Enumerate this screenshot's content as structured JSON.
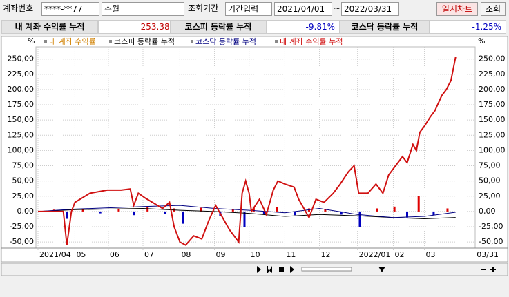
{
  "toolbar": {
    "account_label": "계좌번호",
    "account": "****-**77",
    "name": "추월",
    "period_label": "조회기간",
    "period_mode": "기간입력",
    "start": "2021/04/01",
    "tilde": "~",
    "end": "2022/03/31",
    "chart_button": "일지차트",
    "query_button": "조회"
  },
  "summary": [
    {
      "label": "내 계좌 수익률 누적",
      "value": "253.38%"
    },
    {
      "label": "코스피 등락률 누적",
      "value": "-9.81%"
    },
    {
      "label": "코스닥 등락률 누적",
      "value": "-1.25%"
    }
  ],
  "chart_data": {
    "type": "line",
    "unit": "%",
    "xlim": [
      "2021/04/01",
      "2022/03/31"
    ],
    "xticks": [
      {
        "value": "2021/04/01",
        "label": "2021/04"
      },
      {
        "value": "2021/05/03",
        "label": "05"
      },
      {
        "value": "2021/06/01",
        "label": "06"
      },
      {
        "value": "2021/07/01",
        "label": "07"
      },
      {
        "value": "2021/08/02",
        "label": "08"
      },
      {
        "value": "2021/09/01",
        "label": "09"
      },
      {
        "value": "2021/10/01",
        "label": "10"
      },
      {
        "value": "2021/11/01",
        "label": "11"
      },
      {
        "value": "2021/12/01",
        "label": "12"
      },
      {
        "value": "2022/01/03",
        "label": "2022/01"
      },
      {
        "value": "2022/02/03",
        "label": "02"
      },
      {
        "value": "2022/03/02",
        "label": "03"
      },
      {
        "value": "2022/03/31",
        "label": "03/31"
      }
    ],
    "ylim": [
      -60,
      270
    ],
    "yticks": [
      {
        "value": 250,
        "label": "250,00"
      },
      {
        "value": 225,
        "label": "225,00"
      },
      {
        "value": 200,
        "label": "200,00"
      },
      {
        "value": 175,
        "label": "175,00"
      },
      {
        "value": 150,
        "label": "150,00"
      },
      {
        "value": 125,
        "label": "125,00"
      },
      {
        "value": 100,
        "label": "100,00"
      },
      {
        "value": 75,
        "label": "75,00"
      },
      {
        "value": 50,
        "label": "50,00"
      },
      {
        "value": 25,
        "label": "25,00"
      },
      {
        "value": 0,
        "label": "0,00"
      },
      {
        "value": -25,
        "label": "-25,00"
      },
      {
        "value": -50,
        "label": "-50,00"
      }
    ],
    "grid": true,
    "series": [
      {
        "name": "내 계좌 수익률",
        "type": "bar",
        "color": "#d08000",
        "pos_color": "#e00000",
        "neg_color": "#0000c0",
        "x": [
          "2021/04/15",
          "2021/04/26",
          "2021/05/10",
          "2021/05/25",
          "2021/06/10",
          "2021/06/23",
          "2021/07/05",
          "2021/07/20",
          "2021/07/28",
          "2021/08/05",
          "2021/08/20",
          "2021/09/06",
          "2021/09/17",
          "2021/09/27",
          "2021/10/05",
          "2021/10/14",
          "2021/10/25",
          "2021/11/10",
          "2021/11/22",
          "2021/12/06",
          "2021/12/20",
          "2022/01/05",
          "2022/01/20",
          "2022/02/04",
          "2022/02/15",
          "2022/02/25",
          "2022/03/10",
          "2022/03/22"
        ],
        "values": [
          3,
          -12,
          4,
          -3,
          5,
          -6,
          7,
          -4,
          5,
          -20,
          6,
          -8,
          4,
          -25,
          8,
          -5,
          7,
          -6,
          5,
          4,
          -5,
          -25,
          5,
          8,
          -10,
          25,
          -6,
          5
        ]
      },
      {
        "name": "코스피 등락률 누적",
        "color": "#000000",
        "x": [
          "2021/04/01",
          "2021/05/03",
          "2021/06/01",
          "2021/07/01",
          "2021/08/02",
          "2021/09/01",
          "2021/10/01",
          "2021/11/01",
          "2021/12/01",
          "2022/01/03",
          "2022/02/03",
          "2022/03/02",
          "2022/03/29"
        ],
        "values": [
          0,
          3,
          4,
          5,
          2,
          0,
          -3,
          -8,
          -5,
          -7,
          -10,
          -12,
          -9.81
        ]
      },
      {
        "name": "코스닥 등락률 누적",
        "color": "#000080",
        "x": [
          "2021/04/01",
          "2021/05/03",
          "2021/06/01",
          "2021/07/01",
          "2021/08/02",
          "2021/09/01",
          "2021/10/01",
          "2021/11/01",
          "2021/12/01",
          "2022/01/03",
          "2022/02/03",
          "2022/03/02",
          "2022/03/29"
        ],
        "values": [
          0,
          4,
          6,
          8,
          10,
          5,
          2,
          -2,
          5,
          -5,
          -10,
          -8,
          -1.25
        ]
      },
      {
        "name": "내 계좌 수익률 누적",
        "color": "#d01010",
        "x": [
          "2021/04/01",
          "2021/04/23",
          "2021/04/26",
          "2021/04/30",
          "2021/05/03",
          "2021/05/16",
          "2021/05/31",
          "2021/06/12",
          "2021/06/20",
          "2021/06/23",
          "2021/06/27",
          "2021/07/03",
          "2021/07/18",
          "2021/07/24",
          "2021/07/28",
          "2021/08/02",
          "2021/08/07",
          "2021/08/14",
          "2021/08/21",
          "2021/08/27",
          "2021/09/02",
          "2021/09/08",
          "2021/09/14",
          "2021/09/22",
          "2021/09/25",
          "2021/09/28",
          "2021/10/01",
          "2021/10/03",
          "2021/10/10",
          "2021/10/16",
          "2021/10/22",
          "2021/10/26",
          "2021/11/01",
          "2021/11/09",
          "2021/11/13",
          "2021/11/19",
          "2021/11/22",
          "2021/11/28",
          "2021/12/05",
          "2021/12/13",
          "2021/12/19",
          "2021/12/26",
          "2021/12/31",
          "2022/01/04",
          "2022/01/12",
          "2022/01/19",
          "2022/01/25",
          "2022/01/30",
          "2022/02/05",
          "2022/02/11",
          "2022/02/15",
          "2022/02/20",
          "2022/02/23",
          "2022/02/26",
          "2022/03/02",
          "2022/03/07",
          "2022/03/11",
          "2022/03/17",
          "2022/03/21",
          "2022/03/25",
          "2022/03/29"
        ],
        "values": [
          0,
          0,
          -55,
          0,
          15,
          30,
          35,
          35,
          37,
          10,
          30,
          22,
          5,
          15,
          -25,
          -50,
          -55,
          -40,
          -45,
          -15,
          10,
          -10,
          -30,
          -50,
          30,
          50,
          30,
          0,
          20,
          -5,
          35,
          50,
          45,
          40,
          20,
          0,
          -10,
          20,
          15,
          30,
          45,
          65,
          75,
          30,
          30,
          45,
          30,
          60,
          75,
          90,
          80,
          110,
          100,
          130,
          140,
          155,
          165,
          190,
          200,
          215,
          253.38
        ]
      }
    ]
  }
}
